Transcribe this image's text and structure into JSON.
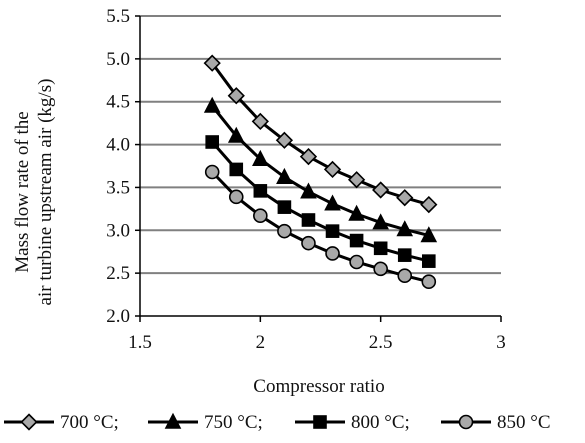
{
  "chart_data": {
    "type": "line",
    "title": "",
    "xlabel": "Compressor ratio",
    "ylabel_lines": [
      "Mass flow rate of the",
      "air turbine upstream air (kg/s)"
    ],
    "xlim": [
      1.5,
      3
    ],
    "ylim": [
      2.0,
      5.5
    ],
    "x_ticks": [
      "1.5",
      "2",
      "2.5",
      "3"
    ],
    "y_ticks": [
      "2.0",
      "2.5",
      "3.0",
      "3.5",
      "4.0",
      "4.5",
      "5.0",
      "5.5"
    ],
    "grid": "horizontal",
    "legend_position": "bottom",
    "colors": {
      "line": "#000000",
      "fill": "#a9a9a9",
      "grid": "#808080",
      "axis": "#000000"
    },
    "x": [
      1.8,
      1.9,
      2.0,
      2.1,
      2.2,
      2.3,
      2.4,
      2.5,
      2.6,
      2.7
    ],
    "series": [
      {
        "name": "700 °C;",
        "marker": "diamond",
        "values": [
          4.95,
          4.57,
          4.27,
          4.05,
          3.86,
          3.71,
          3.59,
          3.47,
          3.38,
          3.3
        ]
      },
      {
        "name": "750 °C;",
        "marker": "triangle",
        "values": [
          4.45,
          4.1,
          3.83,
          3.62,
          3.45,
          3.31,
          3.19,
          3.09,
          3.01,
          2.94
        ]
      },
      {
        "name": "800 °C;",
        "marker": "square",
        "values": [
          4.03,
          3.71,
          3.46,
          3.27,
          3.12,
          2.99,
          2.88,
          2.79,
          2.71,
          2.64
        ]
      },
      {
        "name": "850 °C",
        "marker": "circle",
        "values": [
          3.68,
          3.39,
          3.17,
          2.99,
          2.85,
          2.73,
          2.63,
          2.55,
          2.47,
          2.4
        ]
      }
    ]
  }
}
